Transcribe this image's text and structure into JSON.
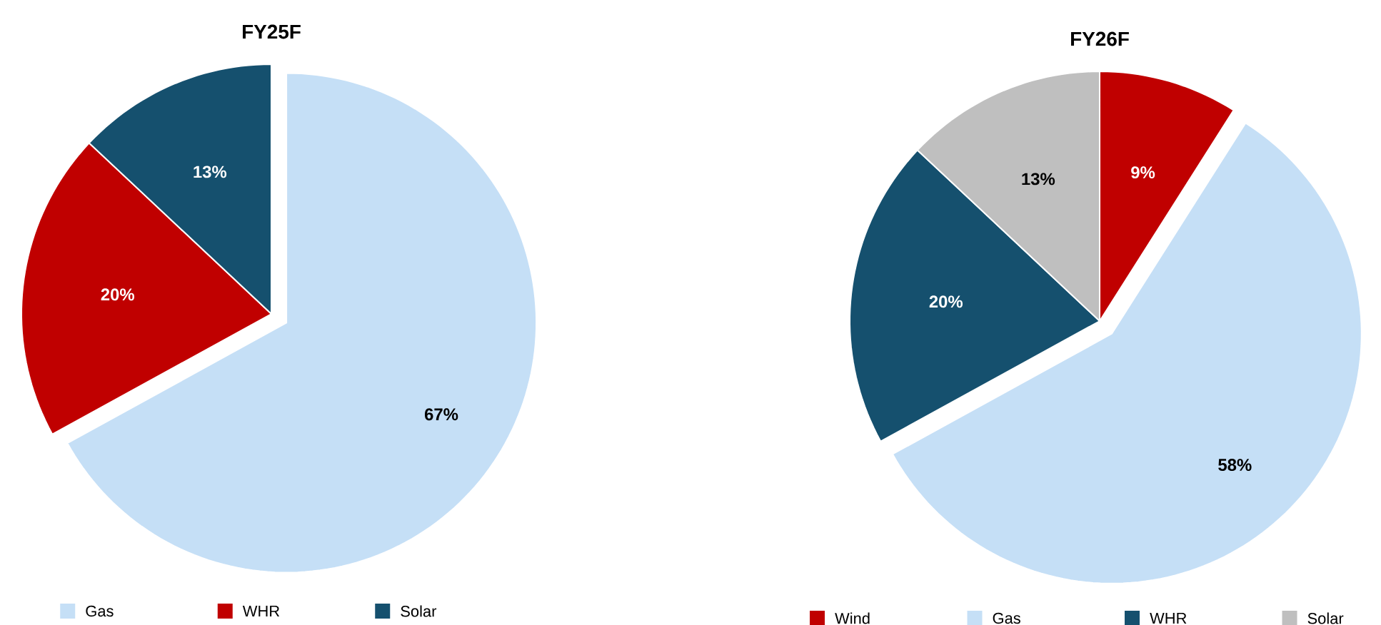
{
  "chart_data": [
    {
      "type": "pie",
      "title": "FY25F",
      "categories": [
        "Gas",
        "WHR",
        "Solar"
      ],
      "values": [
        67,
        20,
        13
      ],
      "colors": [
        "#c5dff6",
        "#c00000",
        "#15506e"
      ],
      "value_labels": [
        "67%",
        "20%",
        "13%"
      ],
      "legend": "bottom"
    },
    {
      "type": "pie",
      "title": "FY26F",
      "categories": [
        "Wind",
        "Gas",
        "WHR",
        "Solar"
      ],
      "values": [
        9,
        58,
        20,
        13
      ],
      "colors": [
        "#c00000",
        "#c5dff6",
        "#15506e",
        "#bfbfbf"
      ],
      "value_labels": [
        "9%",
        "58%",
        "20%",
        "13%"
      ],
      "legend": "bottom"
    }
  ]
}
